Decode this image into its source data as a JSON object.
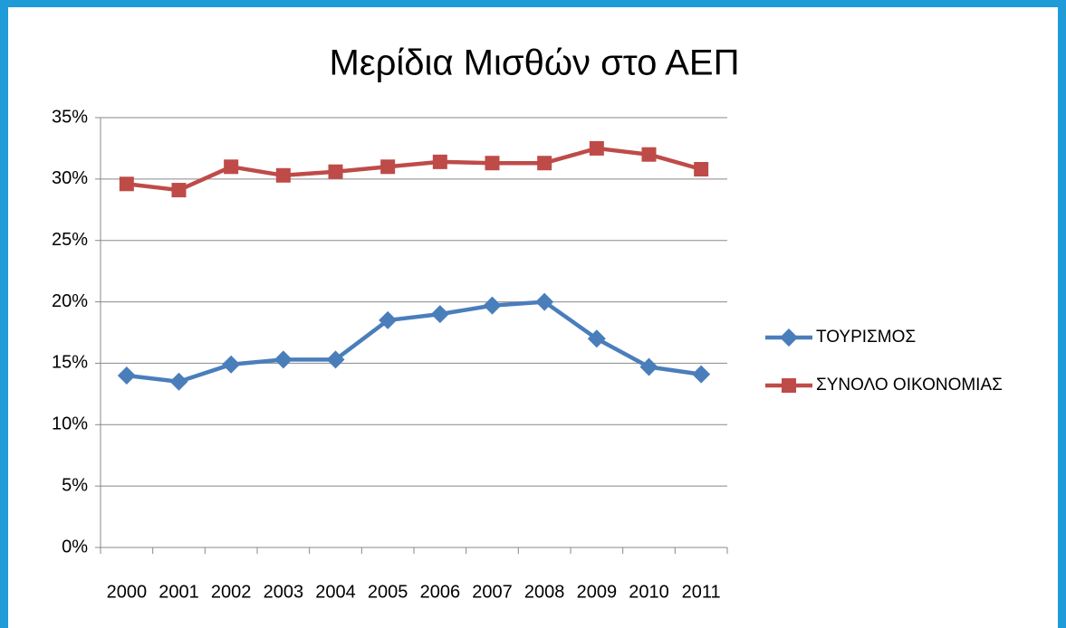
{
  "chart_data": {
    "type": "line",
    "title": "Μερίδια Μισθών στο ΑΕΠ",
    "categories": [
      "2000",
      "2001",
      "2002",
      "2003",
      "2004",
      "2005",
      "2006",
      "2007",
      "2008",
      "2009",
      "2010",
      "2011"
    ],
    "series": [
      {
        "name": "ΤΟΥΡΙΣΜΟΣ",
        "color": "#4a7ebb",
        "marker": "diamond",
        "values": [
          14.0,
          13.5,
          14.9,
          15.3,
          15.3,
          18.5,
          19.0,
          19.7,
          20.0,
          17.0,
          14.7,
          14.1
        ]
      },
      {
        "name": "ΣΥΝΟΛΟ ΟΙΚΟΝΟΜΙΑΣ",
        "color": "#be4b48",
        "marker": "square",
        "values": [
          29.6,
          29.1,
          31.0,
          30.3,
          30.6,
          31.0,
          31.4,
          31.3,
          31.3,
          32.5,
          32.0,
          30.8
        ]
      }
    ],
    "ylim": [
      0,
      35
    ],
    "yticks": [
      {
        "value": 0,
        "label": "0%"
      },
      {
        "value": 5,
        "label": "5%"
      },
      {
        "value": 10,
        "label": "10%"
      },
      {
        "value": 15,
        "label": "15%"
      },
      {
        "value": 20,
        "label": "20%"
      },
      {
        "value": 25,
        "label": "25%"
      },
      {
        "value": 30,
        "label": "30%"
      },
      {
        "value": 35,
        "label": "35%"
      }
    ],
    "grid": true,
    "legend": "right"
  }
}
